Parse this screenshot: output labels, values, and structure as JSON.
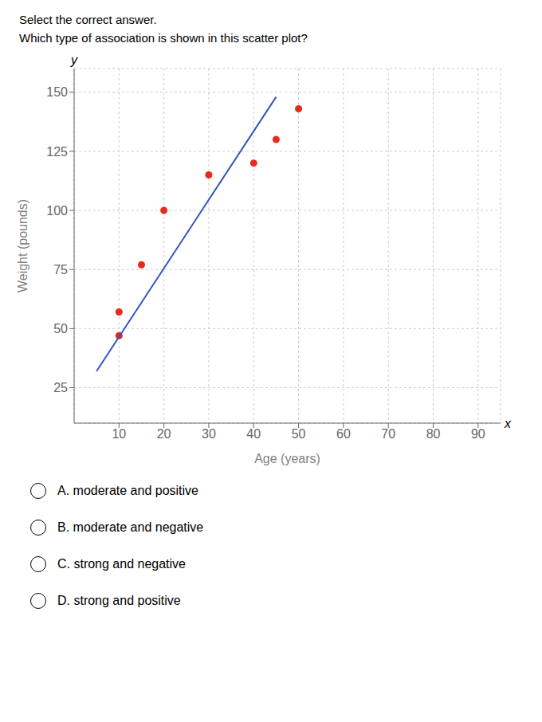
{
  "chart_data": {
    "type": "scatter",
    "title": "Select the correct answer.",
    "subtitle": "Which type of association is shown in this scatter plot?",
    "x_label": "Age (years)",
    "y_label": "Weight (pounds)",
    "series": [
      {
        "type": "scatter",
        "color": "#e8291c",
        "x": [
          10,
          10,
          15,
          20,
          30,
          40,
          45,
          50
        ],
        "values": [
          47,
          57,
          77,
          100,
          115,
          120,
          130,
          143
        ]
      },
      {
        "type": "line",
        "color": "#3355bb",
        "x": [
          5,
          45
        ],
        "values": [
          32,
          148
        ]
      }
    ],
    "xlim": [
      0,
      95
    ],
    "ylim": [
      10,
      160
    ],
    "xticks": [
      10,
      20,
      30,
      40,
      50,
      60,
      70,
      80,
      90
    ],
    "yticks": [
      25,
      50,
      75,
      100,
      125,
      150
    ],
    "grid": true,
    "annotations": [
      "x",
      "y",
      "A. moderate and positive",
      "B. moderate and negative",
      "C. strong and negative",
      "D. strong and positive"
    ]
  }
}
